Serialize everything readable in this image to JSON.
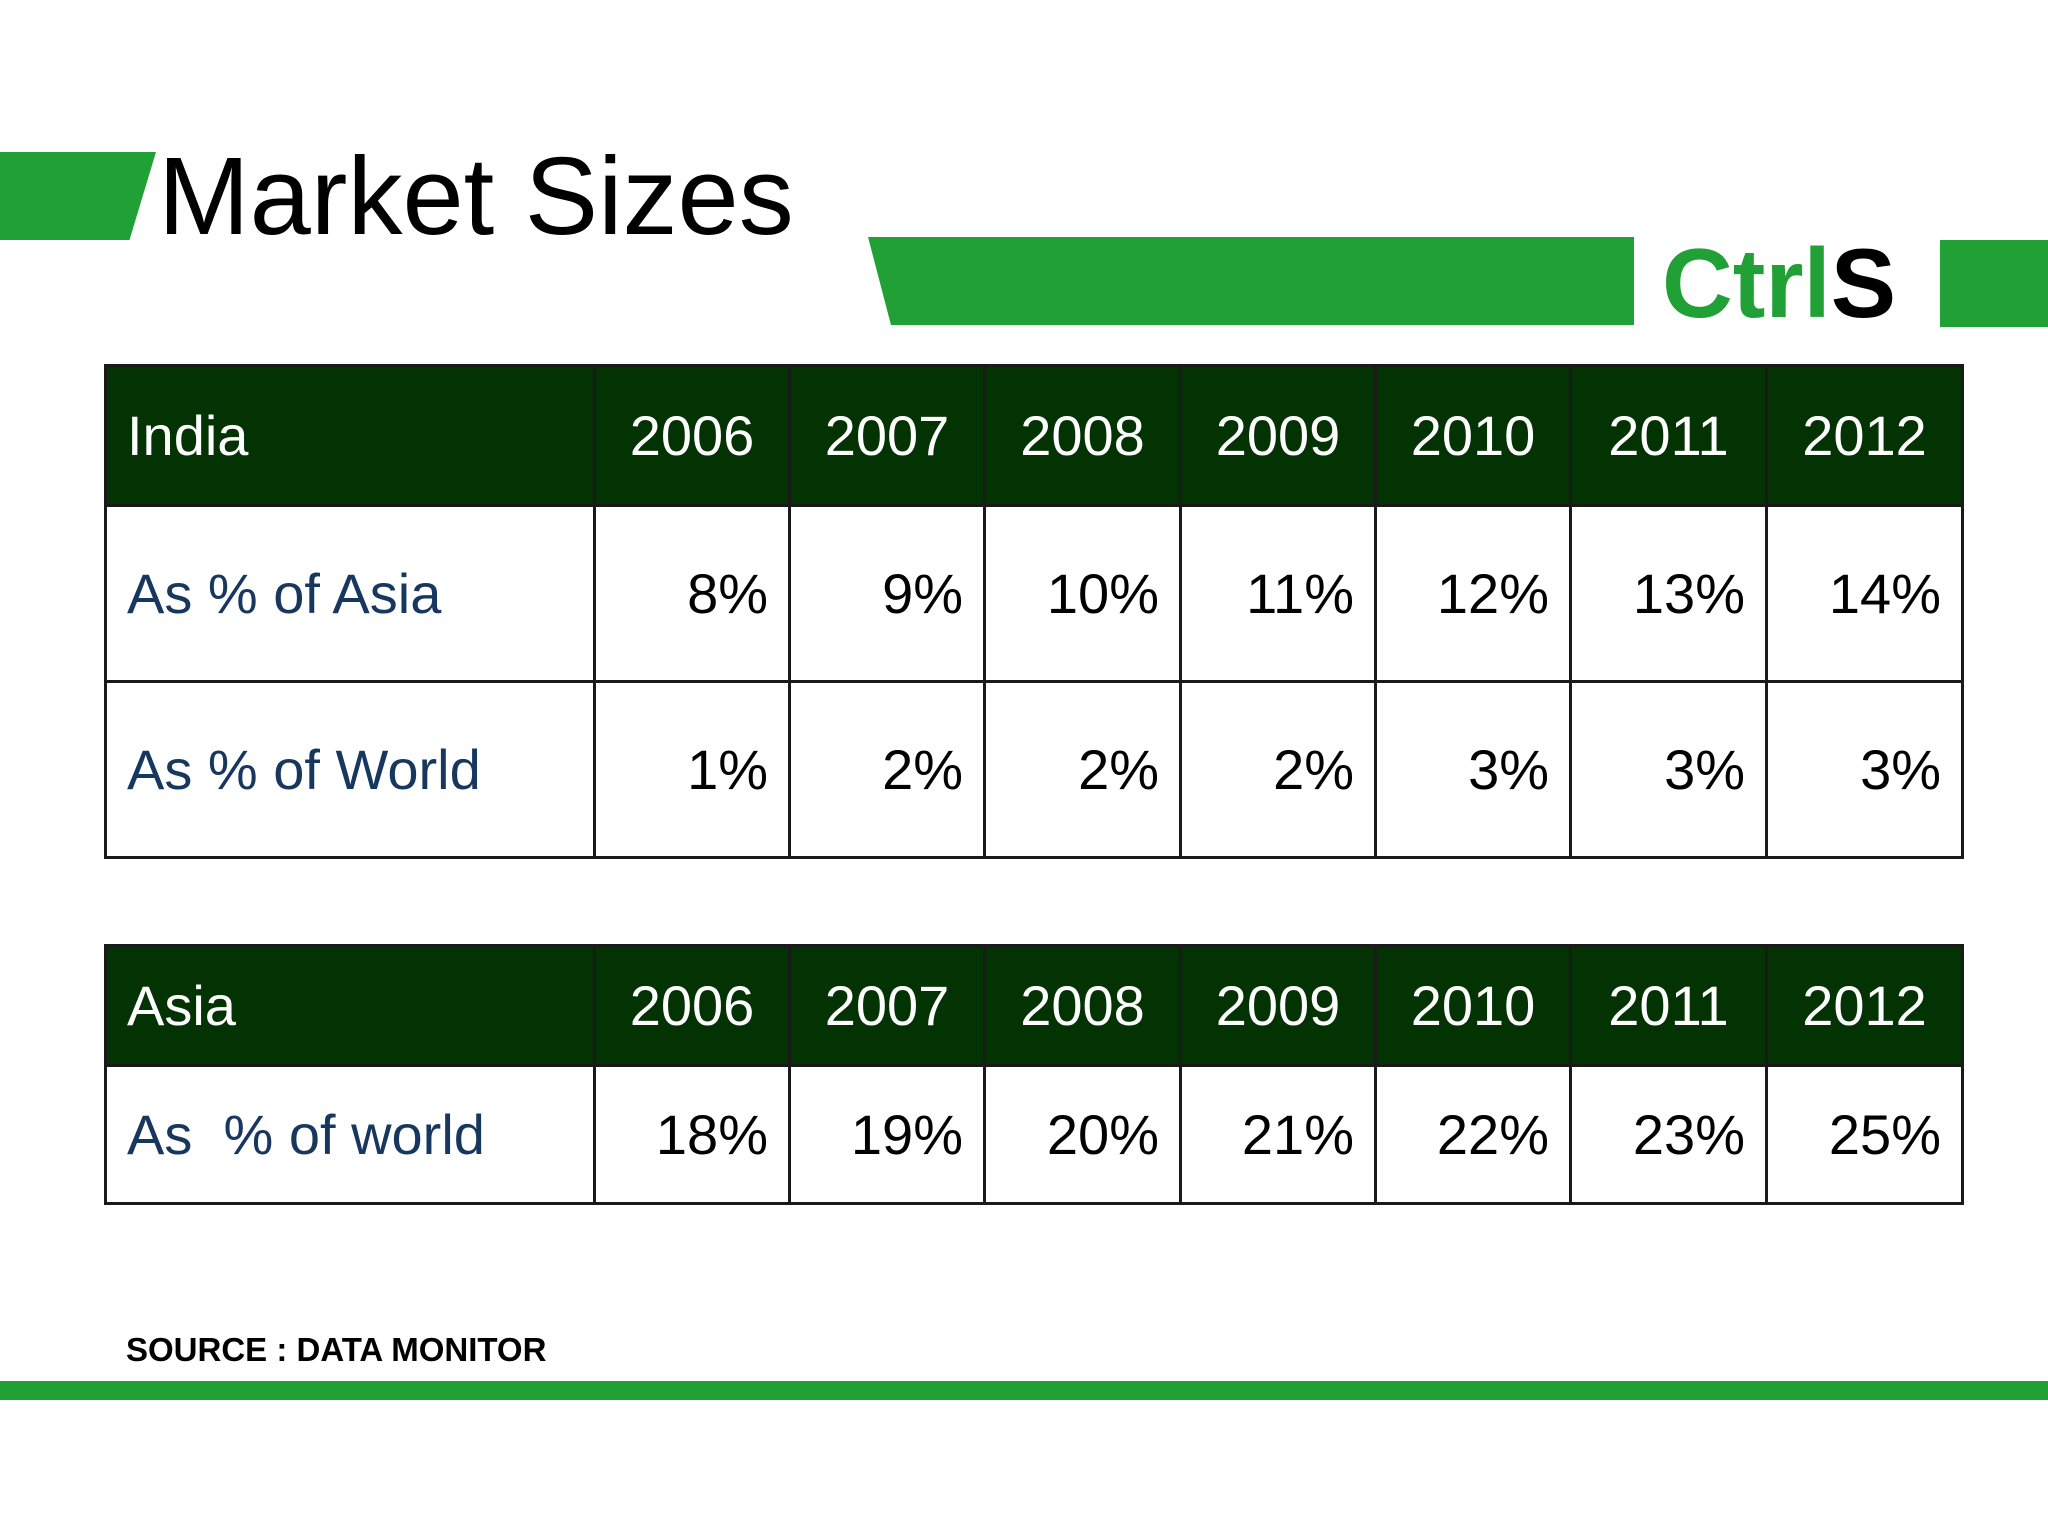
{
  "slide": {
    "title": "Market Sizes",
    "logo": {
      "part_green": "Ctrl",
      "part_black": "S"
    },
    "source": "SOURCE : DATA MONITOR",
    "colors": {
      "accent_green": "#21a035",
      "header_dark_green": "#033203",
      "row_label_blue": "#17375e"
    }
  },
  "india_table": {
    "header": [
      "India",
      "2006",
      "2007",
      "2008",
      "2009",
      "2010",
      "2011",
      "2012"
    ],
    "rows": [
      {
        "label": "As % of Asia",
        "values": [
          "8%",
          "9%",
          "10%",
          "11%",
          "12%",
          "13%",
          "14%"
        ]
      },
      {
        "label": "As % of World",
        "values": [
          "1%",
          "2%",
          "2%",
          "2%",
          "3%",
          "3%",
          "3%"
        ]
      }
    ]
  },
  "asia_table": {
    "header": [
      "Asia",
      "2006",
      "2007",
      "2008",
      "2009",
      "2010",
      "2011",
      "2012"
    ],
    "rows": [
      {
        "label": "As  % of world",
        "values": [
          "18%",
          "19%",
          "20%",
          "21%",
          "22%",
          "23%",
          "25%"
        ]
      }
    ]
  }
}
